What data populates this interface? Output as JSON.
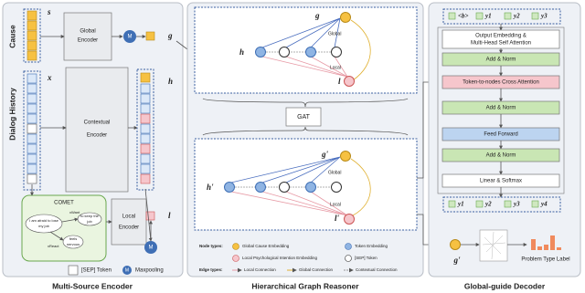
{
  "encoder": {
    "title": "Multi-Source Encoder",
    "cause_label": "Cause",
    "history_label": "Dialog History",
    "s": "s",
    "x": "x",
    "global_encoder": [
      "Global",
      "Encoder"
    ],
    "contextual_encoder": [
      "Contextual",
      "Encoder"
    ],
    "local_encoder": [
      "Local",
      "Encoder"
    ],
    "m": "M",
    "g": "g",
    "h": "h",
    "l": "l",
    "comet": "COMET",
    "utterance": [
      "I am afraid to lose",
      "my job"
    ],
    "xwant": "xWant",
    "want_text": [
      "to keep the",
      "job"
    ],
    "xreact": "xReact",
    "react_text": [
      "feels",
      "nervous"
    ],
    "legend": {
      "sep": "[SEP] Token",
      "m": "M",
      "maxpooling": "Maxpooling"
    }
  },
  "reasoner": {
    "title": "Hierarchical Graph Reasoner",
    "gat": "GAT",
    "top": {
      "g": "g",
      "h": "h",
      "l": "l",
      "global": "Global",
      "local": "Local"
    },
    "bottom": {
      "g": "g'",
      "h": "h'",
      "l": "l'",
      "global": "Global",
      "local": "Local"
    },
    "legend": {
      "node_types": "Node types:",
      "global_cause": "Global Cause Embedding",
      "token": "Token Embedding",
      "local_psych": "Local Psychological Intention Embedding",
      "sep": "[SEP] Token",
      "edge_types": "Edge types:",
      "local_conn": "Local Connection",
      "global_conn": "Global Connection",
      "contextual_conn": "Contextual Connection"
    }
  },
  "decoder": {
    "title": "Global-guide Decoder",
    "inputs": [
      "<b>",
      "y1",
      "y2",
      "y3"
    ],
    "blocks": [
      [
        "Output Embedding &",
        "Multi-Head Self Attention"
      ],
      [
        "Add & Norm"
      ],
      [
        "Token-to-nodes Cross Attention"
      ],
      [
        "Add & Norm"
      ],
      [
        "Feed Forward"
      ],
      [
        "Add & Norm"
      ],
      [
        "Linear & Softmax"
      ]
    ],
    "outputs": [
      "y1",
      "y2",
      "y3",
      "y4"
    ],
    "g": "g'",
    "label": "Problem Type Label"
  }
}
